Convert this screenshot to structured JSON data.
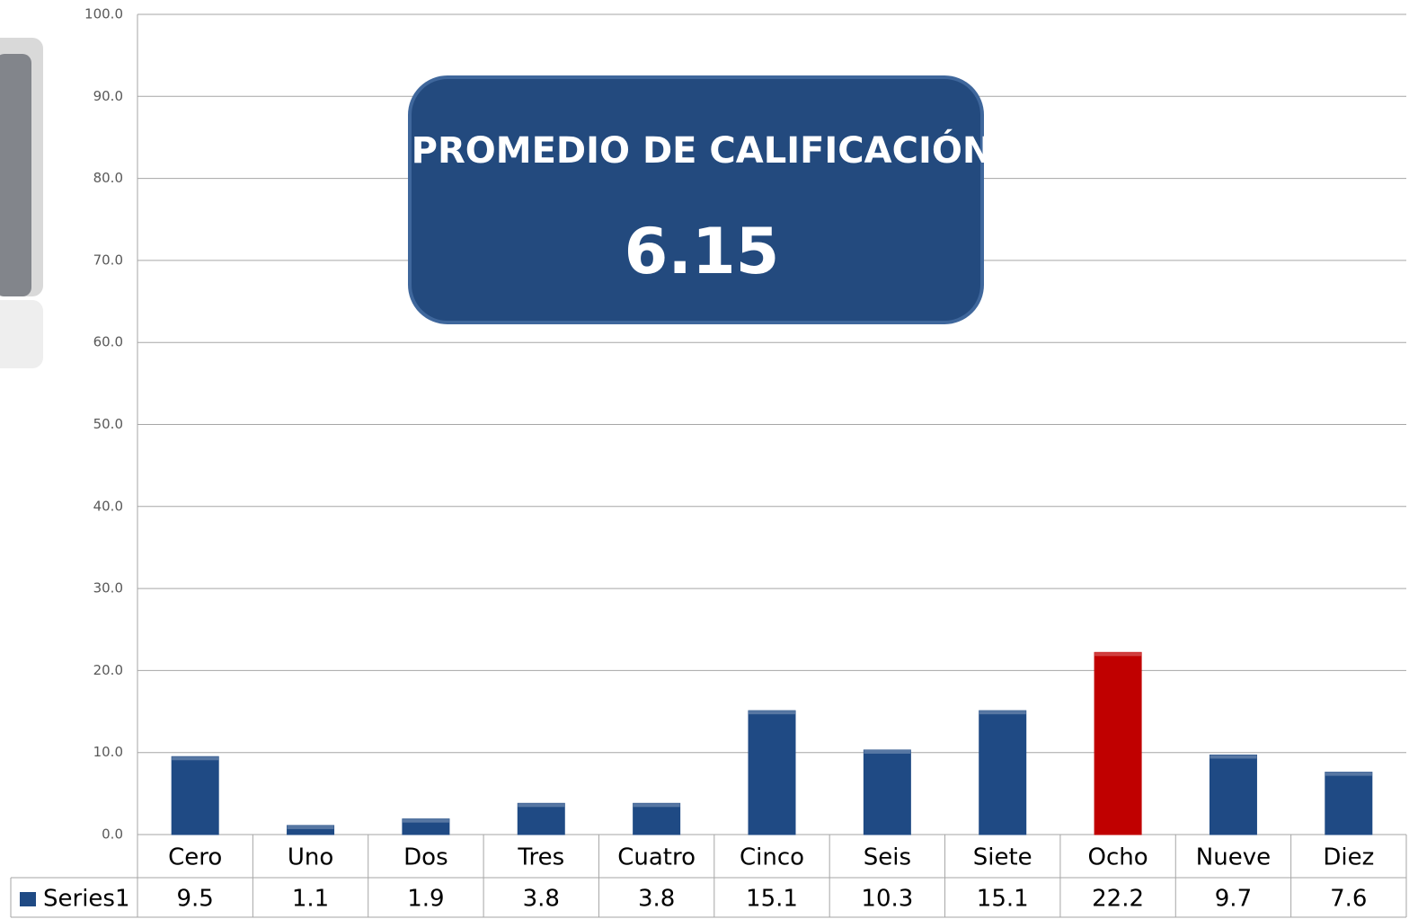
{
  "chart_data": {
    "type": "bar",
    "annotation": {
      "title": "PROMEDIO DE CALIFICACIÓN",
      "value": 6.15
    },
    "categories": [
      "Cero",
      "Uno",
      "Dos",
      "Tres",
      "Cuatro",
      "Cinco",
      "Seis",
      "Siete",
      "Ocho",
      "Nueve",
      "Diez"
    ],
    "series": [
      {
        "name": "Series1",
        "color": "#1f4a84",
        "values": [
          9.5,
          1.1,
          1.9,
          3.8,
          3.8,
          15.1,
          10.3,
          15.1,
          22.2,
          9.7,
          7.6
        ],
        "colors": [
          "#1f4a84",
          "#1f4a84",
          "#1f4a84",
          "#1f4a84",
          "#1f4a84",
          "#1f4a84",
          "#1f4a84",
          "#1f4a84",
          "#c00000",
          "#1f4a84",
          "#1f4a84"
        ]
      }
    ],
    "ylim": [
      0,
      100
    ],
    "yticks": [
      {
        "value": 0,
        "label": "0.0"
      },
      {
        "value": 10,
        "label": "10.0"
      },
      {
        "value": 20,
        "label": "20.0"
      },
      {
        "value": 30,
        "label": "30.0"
      },
      {
        "value": 40,
        "label": "40.0"
      },
      {
        "value": 50,
        "label": "50.0"
      },
      {
        "value": 60,
        "label": "60.0"
      },
      {
        "value": 70,
        "label": "70.0"
      },
      {
        "value": 80,
        "label": "80.0"
      },
      {
        "value": 90,
        "label": "90.0"
      },
      {
        "value": 100,
        "label": "100.0"
      }
    ],
    "grid": true,
    "data_table": true
  }
}
